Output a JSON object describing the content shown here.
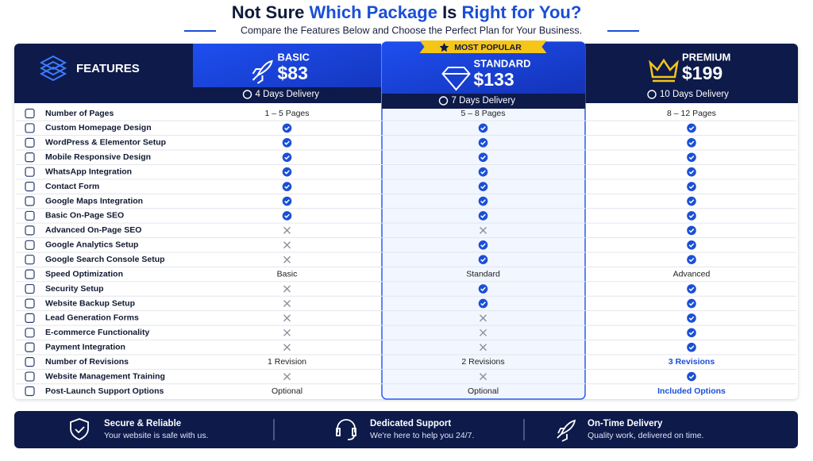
{
  "header": {
    "title_parts": [
      {
        "text": "Not Sure",
        "highlight": false
      },
      {
        "text": "Which Package",
        "highlight": true
      },
      {
        "text": "Is",
        "highlight": false
      },
      {
        "text": "Right for You?",
        "highlight": true
      }
    ],
    "subtitle": "Compare the Features Below and Choose the Perfect Plan for Your Business."
  },
  "table": {
    "feature_heading": "FEATURES",
    "plans": [
      {
        "name": "BASIC",
        "price": "$83",
        "delivery": "4 Days Delivery"
      },
      {
        "name": "STANDARD",
        "price": "$133",
        "delivery": "7 Days Delivery",
        "badge": "MOST POPULAR"
      },
      {
        "name": "PREMIUM",
        "price": "$199",
        "delivery": "10 Days Delivery"
      }
    ],
    "rows": [
      {
        "feature": "Number of Pages",
        "values": [
          "1 – 5 Pages",
          "5 – 8 Pages",
          "8 – 12 Pages"
        ]
      },
      {
        "feature": "Custom Homepage Design",
        "values": [
          true,
          true,
          true
        ]
      },
      {
        "feature": "WordPress & Elementor Setup",
        "values": [
          true,
          true,
          true
        ]
      },
      {
        "feature": "Mobile Responsive Design",
        "values": [
          true,
          true,
          true
        ]
      },
      {
        "feature": "WhatsApp Integration",
        "values": [
          true,
          true,
          true
        ]
      },
      {
        "feature": "Contact Form",
        "values": [
          true,
          true,
          true
        ]
      },
      {
        "feature": "Google Maps Integration",
        "values": [
          true,
          true,
          true
        ]
      },
      {
        "feature": "Basic On-Page SEO",
        "values": [
          true,
          true,
          true
        ]
      },
      {
        "feature": "Advanced On-Page SEO",
        "values": [
          false,
          false,
          true
        ]
      },
      {
        "feature": "Google Analytics Setup",
        "values": [
          false,
          true,
          true
        ]
      },
      {
        "feature": "Google Search Console Setup",
        "values": [
          false,
          true,
          true
        ]
      },
      {
        "feature": "Speed Optimization",
        "values": [
          "Basic",
          "Standard",
          "Advanced"
        ]
      },
      {
        "feature": "Security Setup",
        "values": [
          false,
          true,
          true
        ]
      },
      {
        "feature": "Website Backup Setup",
        "values": [
          false,
          true,
          true
        ]
      },
      {
        "feature": "Lead Generation Forms",
        "values": [
          false,
          false,
          true
        ]
      },
      {
        "feature": "E-commerce Functionality",
        "values": [
          false,
          false,
          true
        ]
      },
      {
        "feature": "Payment Integration",
        "values": [
          false,
          false,
          true
        ]
      },
      {
        "feature": "Number of Revisions",
        "values": [
          "1 Revision",
          "2 Revisions",
          {
            "text": "3 Revisions",
            "highlight": true
          }
        ]
      },
      {
        "feature": "Website Management Training",
        "values": [
          false,
          false,
          true
        ]
      },
      {
        "feature": "Post-Launch Support Options",
        "values": [
          "Optional",
          "Optional",
          {
            "text": "Included Options",
            "highlight": true
          }
        ]
      }
    ]
  },
  "footer": [
    {
      "title": "Secure & Reliable",
      "text": "Your website is safe with us."
    },
    {
      "title": "Dedicated Support",
      "text": "We're here to help you 24/7."
    },
    {
      "title": "On-Time Delivery",
      "text": "Quality work, delivered on time."
    }
  ]
}
